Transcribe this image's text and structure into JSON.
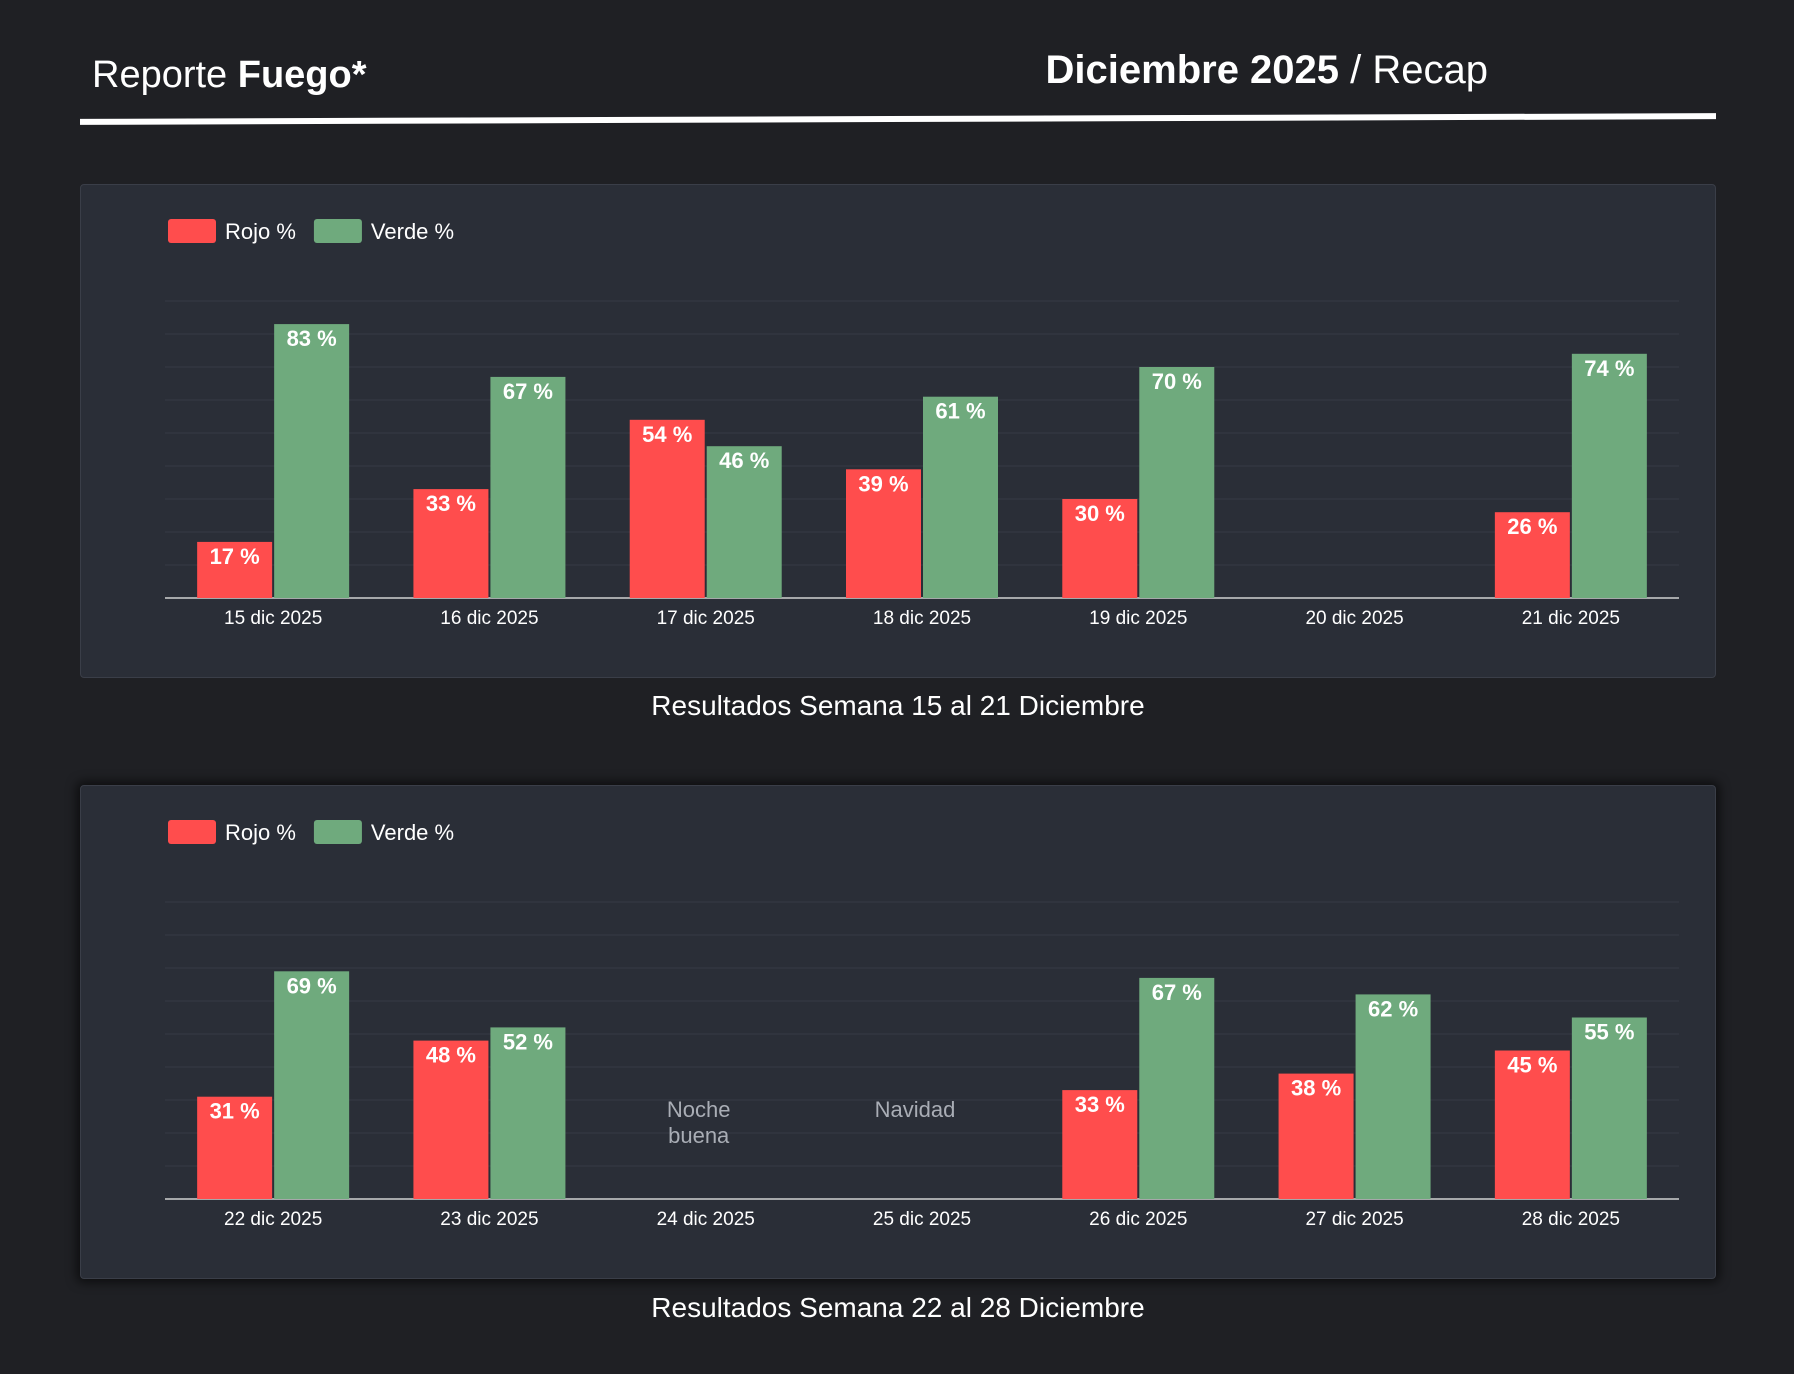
{
  "header": {
    "left_light": "Reporte ",
    "left_bold": "Fuego*",
    "right_bold": "Diciembre 2025",
    "right_light": " / Recap"
  },
  "colors": {
    "rojo": "#ff4d4d",
    "verde": "#6faa7d",
    "background": "#1f2024",
    "panel": "#2a2e37"
  },
  "chart_data": [
    {
      "type": "bar",
      "title": "Resultados Semana 15 al 21 Diciembre",
      "legend": [
        "Rojo %",
        "Verde %"
      ],
      "legend_position": "top-left",
      "value_suffix": " %",
      "ylim": [
        0,
        100
      ],
      "grid": true,
      "categories": [
        "15 dic 2025",
        "16 dic 2025",
        "17 dic 2025",
        "18 dic 2025",
        "19 dic 2025",
        "20 dic 2025",
        "21 dic 2025"
      ],
      "series": [
        {
          "name": "Rojo %",
          "color": "#ff4d4d",
          "values": [
            17,
            33,
            54,
            39,
            30,
            null,
            26
          ]
        },
        {
          "name": "Verde %",
          "color": "#6faa7d",
          "values": [
            83,
            67,
            46,
            61,
            70,
            null,
            74
          ]
        }
      ],
      "annotations": []
    },
    {
      "type": "bar",
      "title": "Resultados Semana 22 al 28 Diciembre",
      "legend": [
        "Rojo %",
        "Verde %"
      ],
      "legend_position": "top-left",
      "value_suffix": " %",
      "ylim": [
        0,
        100
      ],
      "grid": true,
      "categories": [
        "22 dic 2025",
        "23 dic 2025",
        "24 dic 2025",
        "25 dic 2025",
        "26 dic 2025",
        "27 dic 2025",
        "28 dic 2025"
      ],
      "series": [
        {
          "name": "Rojo %",
          "color": "#ff4d4d",
          "values": [
            31,
            48,
            null,
            null,
            33,
            38,
            45
          ]
        },
        {
          "name": "Verde %",
          "color": "#6faa7d",
          "values": [
            69,
            52,
            null,
            null,
            67,
            62,
            55
          ]
        }
      ],
      "annotations": [
        {
          "category_index": 2,
          "lines": [
            "Noche",
            "buena"
          ]
        },
        {
          "category_index": 3,
          "lines": [
            "Navidad"
          ]
        }
      ]
    }
  ]
}
